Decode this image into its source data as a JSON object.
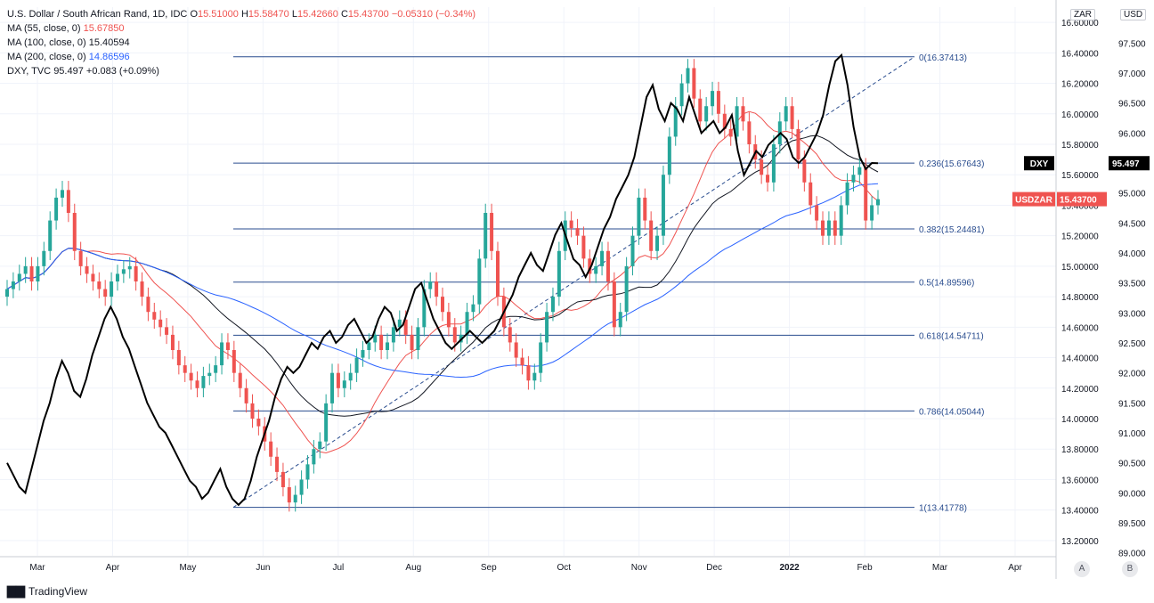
{
  "legend": {
    "main": {
      "symbol": "U.S. Dollar / South African Rand, 1D, IDC",
      "open_label": "O",
      "open": "15.51000",
      "high_label": "H",
      "high": "15.58470",
      "low_label": "L",
      "low": "15.42660",
      "close_label": "C",
      "close": "15.43700",
      "change": "−0.05310 (−0.34%)"
    },
    "ma55": {
      "label": "MA (55, close, 0)",
      "value": "15.67850",
      "color": "#ef5350"
    },
    "ma100": {
      "label": "MA (100, close, 0)",
      "value": "15.40594",
      "color": "#131722"
    },
    "ma200": {
      "label": "MA (200, close, 0)",
      "value": "14.86596",
      "color": "#2962ff"
    },
    "dxy": {
      "label": "DXY, TVC",
      "value": "95.497",
      "change": "+0.083 (+0.09%)"
    }
  },
  "axis_tags": {
    "left": "ZAR",
    "right": "USD"
  },
  "price_tags": {
    "dxy_name": "DXY",
    "dxy_value": "95.497",
    "usdzar_name": "USDZAR",
    "usdzar_value": "15.43700"
  },
  "buttons": {
    "a": "A",
    "b": "B"
  },
  "footer": {
    "brand": "TradingView"
  },
  "chart_data": {
    "type": "candlestick",
    "x_ticks": [
      "Mar",
      "Apr",
      "May",
      "Jun",
      "Jul",
      "Aug",
      "Sep",
      "Oct",
      "Nov",
      "Dec",
      "2022",
      "Feb",
      "Mar",
      "Apr"
    ],
    "zar_axis": {
      "ylim": [
        13.1,
        16.7
      ],
      "ticks": [
        "13.20000",
        "13.40000",
        "13.60000",
        "13.80000",
        "14.00000",
        "14.20000",
        "14.40000",
        "14.60000",
        "14.80000",
        "15.00000",
        "15.20000",
        "15.40000",
        "15.60000",
        "15.80000",
        "16.00000",
        "16.20000",
        "16.40000",
        "16.60000"
      ]
    },
    "usd_axis": {
      "ylim": [
        88.95,
        98.1
      ],
      "ticks": [
        "89.000",
        "89.500",
        "90.000",
        "90.500",
        "91.000",
        "91.500",
        "92.000",
        "92.500",
        "93.000",
        "93.500",
        "94.000",
        "94.500",
        "95.000",
        "95.500",
        "96.000",
        "96.500",
        "97.000",
        "97.500"
      ]
    },
    "fib_levels": [
      {
        "label": "0(16.37413)",
        "value": 16.37413
      },
      {
        "label": "0.236(15.67643)",
        "value": 15.67643
      },
      {
        "label": "0.382(15.24481)",
        "value": 15.24481
      },
      {
        "label": "0.5(14.89596)",
        "value": 14.89596
      },
      {
        "label": "0.618(14.54711)",
        "value": 14.54711
      },
      {
        "label": "0.786(14.05044)",
        "value": 14.05044
      },
      {
        "label": "1(13.41778)",
        "value": 13.41778
      }
    ],
    "usdzar_close": [
      14.85,
      14.9,
      14.95,
      15.0,
      14.9,
      15.0,
      15.1,
      15.3,
      15.45,
      15.5,
      15.35,
      15.1,
      15.0,
      14.95,
      14.9,
      14.85,
      14.8,
      14.9,
      14.95,
      14.98,
      15.0,
      14.9,
      14.8,
      14.7,
      14.65,
      14.6,
      14.55,
      14.45,
      14.35,
      14.3,
      14.25,
      14.2,
      14.28,
      14.3,
      14.35,
      14.5,
      14.45,
      14.3,
      14.2,
      14.1,
      14.0,
      13.95,
      13.85,
      13.75,
      13.65,
      13.55,
      13.45,
      13.5,
      13.6,
      13.7,
      13.8,
      13.85,
      14.1,
      14.3,
      14.2,
      14.25,
      14.3,
      14.4,
      14.45,
      14.5,
      14.55,
      14.45,
      14.5,
      14.6,
      14.65,
      14.55,
      14.45,
      14.6,
      14.85,
      14.9,
      14.8,
      14.7,
      14.6,
      14.5,
      14.55,
      14.7,
      14.75,
      15.05,
      15.35,
      15.1,
      14.8,
      14.6,
      14.5,
      14.4,
      14.35,
      14.25,
      14.3,
      14.5,
      14.7,
      14.8,
      15.1,
      15.3,
      15.25,
      15.2,
      15.05,
      14.95,
      15.0,
      15.1,
      14.9,
      14.6,
      14.7,
      15.0,
      15.2,
      15.45,
      15.3,
      15.1,
      15.2,
      15.6,
      15.85,
      16.05,
      16.2,
      16.3,
      16.1,
      15.95,
      16.05,
      16.15,
      16.0,
      15.9,
      15.85,
      16.05,
      15.95,
      15.8,
      15.7,
      15.6,
      15.55,
      15.8,
      15.95,
      16.05,
      15.9,
      15.7,
      15.55,
      15.4,
      15.3,
      15.2,
      15.3,
      15.2,
      15.4,
      15.55,
      15.6,
      15.65,
      15.3,
      15.4,
      15.44
    ],
    "dxy_close": [
      90.5,
      90.3,
      90.1,
      90.0,
      90.4,
      90.8,
      91.2,
      91.5,
      91.9,
      92.2,
      92.0,
      91.7,
      91.6,
      91.9,
      92.3,
      92.6,
      92.9,
      93.1,
      92.9,
      92.6,
      92.4,
      92.1,
      91.8,
      91.5,
      91.3,
      91.1,
      91.0,
      90.8,
      90.6,
      90.4,
      90.2,
      90.1,
      89.9,
      90.0,
      90.2,
      90.4,
      90.1,
      89.9,
      89.8,
      89.9,
      90.2,
      90.6,
      90.9,
      91.2,
      91.6,
      91.9,
      92.1,
      92.0,
      92.1,
      92.3,
      92.5,
      92.4,
      92.6,
      92.7,
      92.5,
      92.6,
      92.8,
      92.9,
      92.7,
      92.5,
      92.6,
      92.9,
      93.1,
      93.0,
      92.7,
      92.8,
      93.1,
      93.4,
      93.5,
      93.2,
      92.9,
      92.7,
      92.5,
      92.4,
      92.5,
      92.6,
      92.7,
      92.6,
      92.5,
      92.6,
      92.7,
      92.9,
      93.1,
      93.3,
      93.6,
      93.8,
      94.0,
      93.8,
      93.7,
      94.0,
      94.3,
      94.5,
      94.2,
      93.9,
      93.8,
      93.6,
      93.8,
      94.1,
      94.4,
      94.6,
      94.9,
      95.1,
      95.3,
      95.6,
      96.1,
      96.6,
      96.8,
      96.4,
      96.2,
      96.5,
      96.4,
      96.2,
      96.6,
      96.3,
      96.0,
      96.1,
      96.2,
      96.0,
      96.1,
      96.3,
      95.7,
      95.3,
      95.5,
      95.7,
      95.6,
      95.8,
      95.9,
      96.0,
      95.9,
      95.6,
      95.5,
      95.6,
      95.8,
      96.0,
      96.3,
      96.8,
      97.2,
      97.3,
      96.8,
      96.1,
      95.6,
      95.4,
      95.5,
      95.497
    ]
  }
}
